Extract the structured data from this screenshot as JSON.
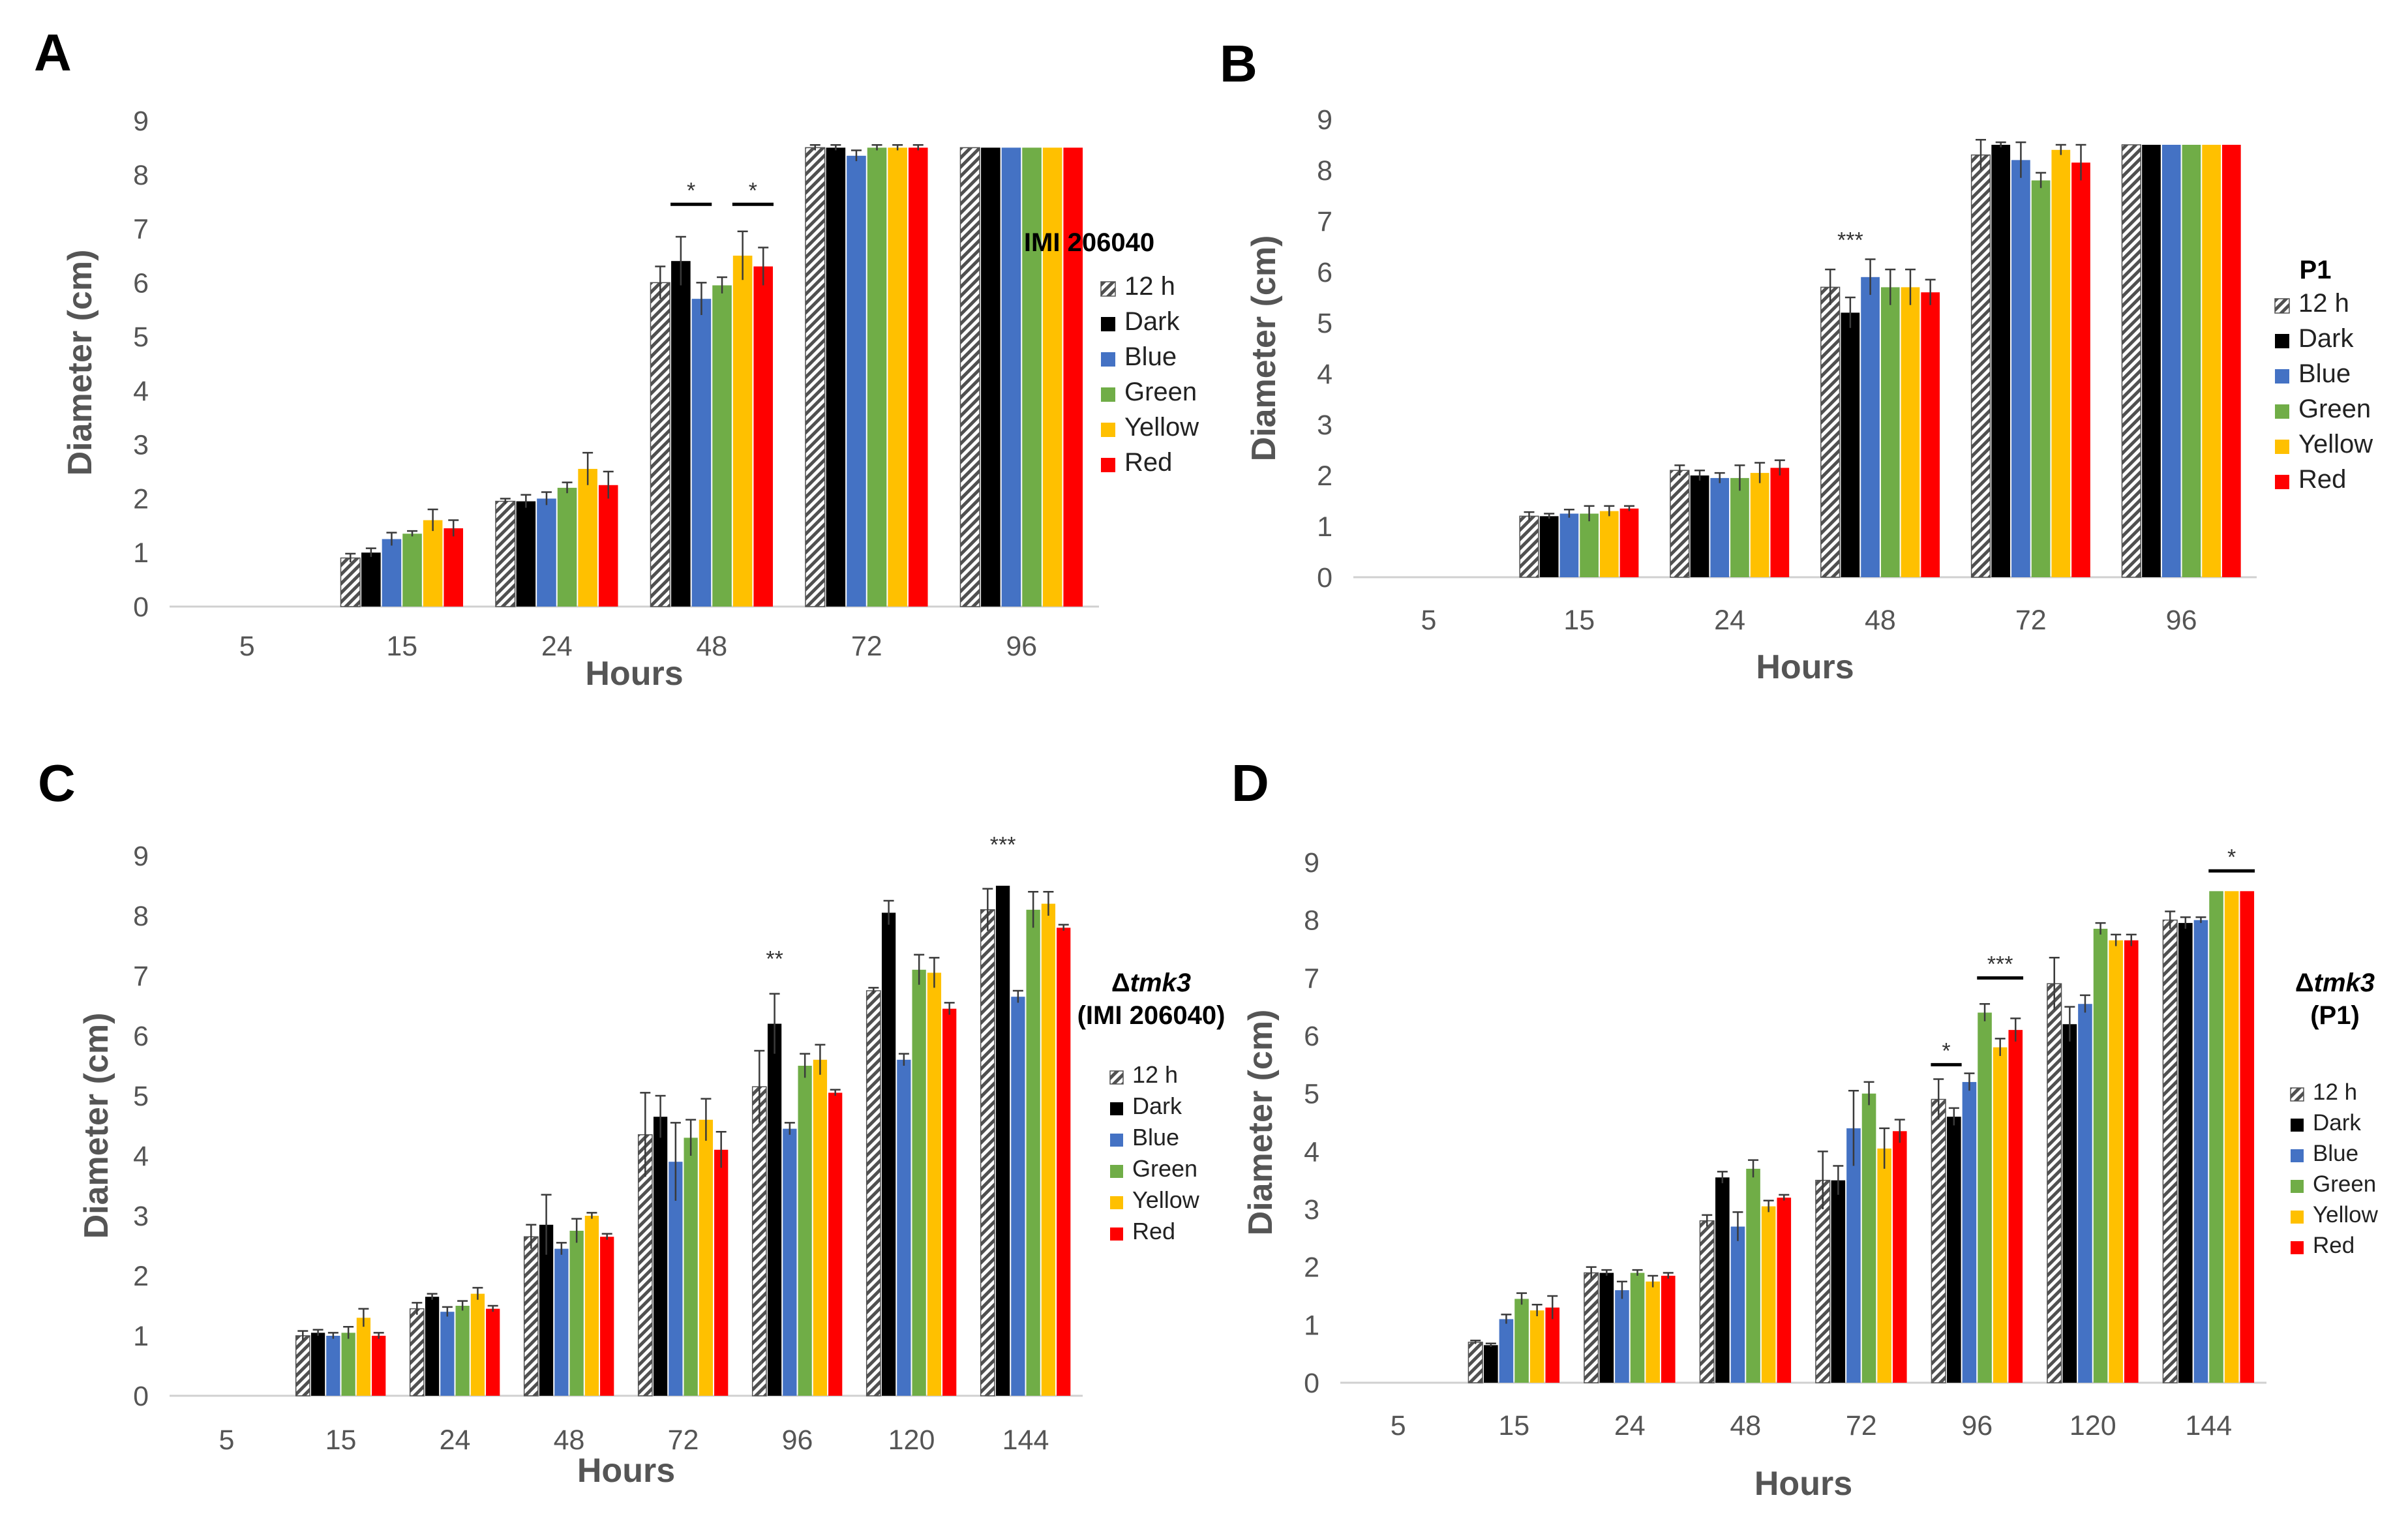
{
  "chart_data": [
    {
      "panel": "A",
      "type": "bar",
      "title": "",
      "xlabel": "Hours",
      "ylabel": "Diameter (cm)",
      "ylim": [
        0,
        9
      ],
      "yticks": [
        0,
        1,
        2,
        3,
        4,
        5,
        6,
        7,
        8,
        9
      ],
      "categories": [
        "5",
        "15",
        "24",
        "48",
        "72",
        "96"
      ],
      "legend": {
        "title_lines": [
          "IMI 206040"
        ],
        "placement": "right"
      },
      "series": [
        {
          "name": "12 h",
          "color": "#7f7f7f",
          "pattern": "hatch",
          "values": [
            0,
            0.9,
            1.95,
            6.0,
            8.5,
            8.5
          ],
          "errors": [
            0,
            0.08,
            0.05,
            0.3,
            0.05,
            0.0
          ]
        },
        {
          "name": "Dark",
          "color": "#000000",
          "values": [
            0,
            1.0,
            1.95,
            6.4,
            8.5,
            8.5
          ],
          "errors": [
            0,
            0.08,
            0.12,
            0.45,
            0.05,
            0.0
          ]
        },
        {
          "name": "Blue",
          "color": "#4472c4",
          "values": [
            0,
            1.25,
            2.0,
            5.7,
            8.35,
            8.5
          ],
          "errors": [
            0,
            0.12,
            0.12,
            0.3,
            0.1,
            0.0
          ]
        },
        {
          "name": "Green",
          "color": "#70ad47",
          "values": [
            0,
            1.35,
            2.2,
            5.95,
            8.5,
            8.5
          ],
          "errors": [
            0,
            0.05,
            0.1,
            0.15,
            0.05,
            0.0
          ]
        },
        {
          "name": "Yellow",
          "color": "#ffc000",
          "values": [
            0,
            1.6,
            2.55,
            6.5,
            8.5,
            8.5
          ],
          "errors": [
            0,
            0.2,
            0.3,
            0.45,
            0.05,
            0.0
          ]
        },
        {
          "name": "Red",
          "color": "#ff0000",
          "values": [
            0,
            1.45,
            2.25,
            6.3,
            8.5,
            8.5
          ],
          "errors": [
            0,
            0.15,
            0.25,
            0.35,
            0.05,
            0.0
          ]
        }
      ],
      "annotations": [
        {
          "text": "*",
          "category": "48",
          "from": "Dark",
          "to": "Blue",
          "y": 7.45,
          "line": true
        },
        {
          "text": "*",
          "category": "48",
          "from": "Yellow",
          "to": "Red",
          "y": 7.45,
          "line": true
        }
      ]
    },
    {
      "panel": "B",
      "type": "bar",
      "title": "",
      "xlabel": "Hours",
      "ylabel": "Diameter (cm)",
      "ylim": [
        0,
        9
      ],
      "yticks": [
        0,
        1,
        2,
        3,
        4,
        5,
        6,
        7,
        8,
        9
      ],
      "categories": [
        "5",
        "15",
        "24",
        "48",
        "72",
        "96"
      ],
      "legend": {
        "title_lines": [
          "P1"
        ],
        "placement": "right"
      },
      "series": [
        {
          "name": "12 h",
          "color": "#7f7f7f",
          "pattern": "hatch",
          "values": [
            0,
            1.2,
            2.1,
            5.7,
            8.3,
            8.5
          ],
          "errors": [
            0,
            0.08,
            0.1,
            0.35,
            0.3,
            0.0
          ]
        },
        {
          "name": "Dark",
          "color": "#000000",
          "values": [
            0,
            1.2,
            2.0,
            5.2,
            8.5,
            8.5
          ],
          "errors": [
            0,
            0.05,
            0.1,
            0.3,
            0.05,
            0.0
          ]
        },
        {
          "name": "Blue",
          "color": "#4472c4",
          "values": [
            0,
            1.25,
            1.95,
            5.9,
            8.2,
            8.5
          ],
          "errors": [
            0,
            0.08,
            0.1,
            0.35,
            0.35,
            0.0
          ]
        },
        {
          "name": "Green",
          "color": "#70ad47",
          "values": [
            0,
            1.25,
            1.95,
            5.7,
            7.8,
            8.5
          ],
          "errors": [
            0,
            0.15,
            0.25,
            0.35,
            0.15,
            0.0
          ]
        },
        {
          "name": "Yellow",
          "color": "#ffc000",
          "values": [
            0,
            1.3,
            2.05,
            5.7,
            8.4,
            8.5
          ],
          "errors": [
            0,
            0.1,
            0.2,
            0.35,
            0.1,
            0.0
          ]
        },
        {
          "name": "Red",
          "color": "#ff0000",
          "values": [
            0,
            1.35,
            2.15,
            5.6,
            8.15,
            8.5
          ],
          "errors": [
            0,
            0.05,
            0.15,
            0.25,
            0.35,
            0.0
          ]
        }
      ],
      "annotations": [
        {
          "text": "***",
          "category": "48",
          "from": "Dark",
          "to": "Dark",
          "y": 6.35,
          "line": false
        }
      ]
    },
    {
      "panel": "C",
      "type": "bar",
      "title": "",
      "xlabel": "Hours",
      "ylabel": "Diameter (cm)",
      "ylim": [
        0,
        9
      ],
      "yticks": [
        0,
        1,
        2,
        3,
        4,
        5,
        6,
        7,
        8,
        9
      ],
      "categories": [
        "5",
        "15",
        "24",
        "48",
        "72",
        "96",
        "120",
        "144"
      ],
      "legend": {
        "title_lines": [
          "Δtmk3",
          "(IMI 206040)"
        ],
        "placement": "right"
      },
      "series": [
        {
          "name": "12 h",
          "color": "#7f7f7f",
          "pattern": "hatch",
          "values": [
            0,
            1.0,
            1.45,
            2.65,
            4.35,
            5.15,
            6.75,
            8.1
          ],
          "errors": [
            0,
            0.08,
            0.1,
            0.2,
            0.7,
            0.6,
            0.05,
            0.35
          ]
        },
        {
          "name": "Dark",
          "color": "#000000",
          "values": [
            0,
            1.05,
            1.65,
            2.85,
            4.65,
            6.2,
            8.05,
            8.5
          ],
          "errors": [
            0,
            0.05,
            0.05,
            0.5,
            0.35,
            0.5,
            0.2,
            0.0
          ]
        },
        {
          "name": "Blue",
          "color": "#4472c4",
          "values": [
            0,
            1.0,
            1.4,
            2.45,
            3.9,
            4.45,
            5.6,
            6.65
          ],
          "errors": [
            0,
            0.05,
            0.08,
            0.1,
            0.65,
            0.1,
            0.1,
            0.1
          ]
        },
        {
          "name": "Green",
          "color": "#70ad47",
          "values": [
            0,
            1.05,
            1.5,
            2.75,
            4.3,
            5.5,
            7.1,
            8.1
          ],
          "errors": [
            0,
            0.1,
            0.08,
            0.2,
            0.3,
            0.2,
            0.25,
            0.3
          ]
        },
        {
          "name": "Yellow",
          "color": "#ffc000",
          "values": [
            0,
            1.3,
            1.7,
            3.0,
            4.6,
            5.6,
            7.05,
            8.2
          ],
          "errors": [
            0,
            0.15,
            0.1,
            0.05,
            0.35,
            0.25,
            0.25,
            0.2
          ]
        },
        {
          "name": "Red",
          "color": "#ff0000",
          "values": [
            0,
            1.0,
            1.45,
            2.65,
            4.1,
            5.05,
            6.45,
            7.8
          ],
          "errors": [
            0,
            0.05,
            0.05,
            0.05,
            0.3,
            0.05,
            0.1,
            0.05
          ]
        }
      ],
      "annotations": [
        {
          "text": "**",
          "category": "96",
          "from": "Dark",
          "to": "Dark",
          "y": 7.05,
          "line": false
        },
        {
          "text": "***",
          "category": "144",
          "from": "Dark",
          "to": "Dark",
          "y": 8.95,
          "line": false
        }
      ]
    },
    {
      "panel": "D",
      "type": "bar",
      "title": "",
      "xlabel": "Hours",
      "ylabel": "Diameter (cm)",
      "ylim": [
        0,
        9
      ],
      "yticks": [
        0,
        1,
        2,
        3,
        4,
        5,
        6,
        7,
        8,
        9
      ],
      "categories": [
        "5",
        "15",
        "24",
        "48",
        "72",
        "96",
        "120",
        "144"
      ],
      "legend": {
        "title_lines": [
          "Δtmk3",
          "(P1)"
        ],
        "placement": "right"
      },
      "series": [
        {
          "name": "12 h",
          "color": "#7f7f7f",
          "pattern": "hatch",
          "values": [
            0,
            0.7,
            1.9,
            2.8,
            3.5,
            4.9,
            6.9,
            8.0
          ],
          "errors": [
            0,
            0.03,
            0.1,
            0.1,
            0.5,
            0.35,
            0.45,
            0.15
          ]
        },
        {
          "name": "Dark",
          "color": "#000000",
          "values": [
            0,
            0.65,
            1.9,
            3.55,
            3.5,
            4.6,
            6.2,
            7.95
          ],
          "errors": [
            0,
            0.03,
            0.05,
            0.1,
            0.25,
            0.15,
            0.3,
            0.1
          ]
        },
        {
          "name": "Blue",
          "color": "#4472c4",
          "values": [
            0,
            1.1,
            1.6,
            2.7,
            4.4,
            5.2,
            6.55,
            8.0
          ],
          "errors": [
            0,
            0.08,
            0.15,
            0.25,
            0.65,
            0.15,
            0.15,
            0.05
          ]
        },
        {
          "name": "Green",
          "color": "#70ad47",
          "values": [
            0,
            1.45,
            1.9,
            3.7,
            5.0,
            6.4,
            7.85,
            8.5
          ],
          "errors": [
            0,
            0.1,
            0.05,
            0.15,
            0.2,
            0.15,
            0.1,
            0.0
          ]
        },
        {
          "name": "Yellow",
          "color": "#ffc000",
          "values": [
            0,
            1.25,
            1.75,
            3.05,
            4.05,
            5.8,
            7.65,
            8.5
          ],
          "errors": [
            0,
            0.1,
            0.1,
            0.1,
            0.35,
            0.15,
            0.1,
            0.0
          ]
        },
        {
          "name": "Red",
          "color": "#ff0000",
          "values": [
            0,
            1.3,
            1.85,
            3.2,
            4.35,
            6.1,
            7.65,
            8.5
          ],
          "errors": [
            0,
            0.2,
            0.05,
            0.05,
            0.2,
            0.2,
            0.1,
            0.0
          ]
        }
      ],
      "annotations": [
        {
          "text": "*",
          "category": "96",
          "from": "12 h",
          "to": "Dark",
          "y": 5.5,
          "line": true
        },
        {
          "text": "***",
          "category": "96",
          "from": "Green",
          "to": "Red",
          "y": 7.0,
          "line": true
        },
        {
          "text": "*",
          "category": "144",
          "from": "Green",
          "to": "Red",
          "y": 8.85,
          "line": true
        }
      ]
    }
  ]
}
